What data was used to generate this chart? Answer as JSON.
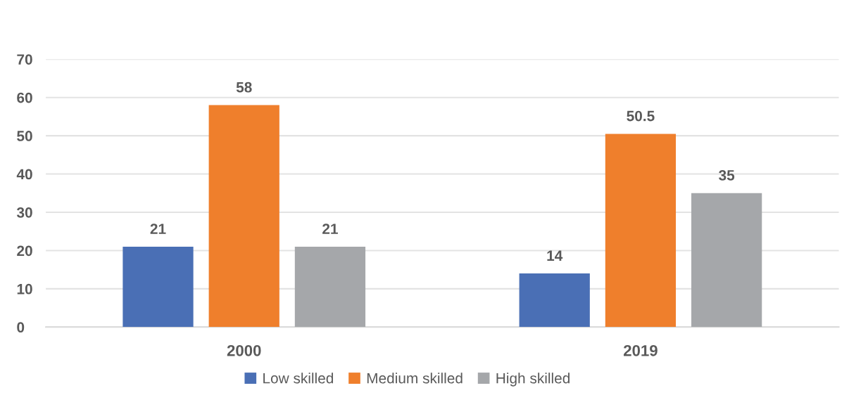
{
  "chart_data": {
    "type": "bar",
    "categories": [
      "2000",
      "2019"
    ],
    "series": [
      {
        "name": "Low skilled",
        "color": "#4a6fb5",
        "values": [
          21,
          14
        ]
      },
      {
        "name": "Medium skilled",
        "color": "#ef7f2c",
        "values": [
          58,
          50.5
        ]
      },
      {
        "name": "High skilled",
        "color": "#a5a7aa",
        "values": [
          21,
          35
        ]
      }
    ],
    "ylim": [
      0,
      70
    ],
    "yticks": [
      0,
      10,
      20,
      30,
      40,
      50,
      60,
      70
    ],
    "grid": "y",
    "legend": "bottom",
    "data_labels": true
  }
}
